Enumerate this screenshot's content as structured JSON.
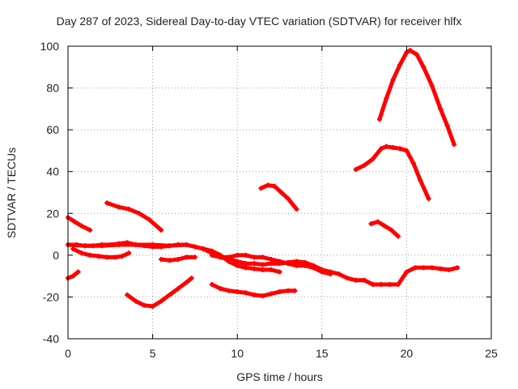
{
  "chart_data": {
    "type": "scatter",
    "title": "Day 287 of 2023, Sidereal Day-to-day VTEC variation (SDTVAR) for receiver hlfx",
    "xlabel": "GPS time / hours",
    "ylabel": "SDTVAR / TECUs",
    "xlim": [
      0,
      25
    ],
    "ylim": [
      -40,
      100
    ],
    "xticks": [
      0,
      5,
      10,
      15,
      20,
      25
    ],
    "yticks": [
      -40,
      -20,
      0,
      20,
      40,
      60,
      80,
      100
    ],
    "grid": true,
    "color": "#ff0000",
    "series": [
      {
        "name": "track-1",
        "x": [
          18.4,
          18.8,
          19.2,
          19.6,
          20.0,
          20.2,
          20.6,
          21.0,
          21.5,
          22.0,
          22.4,
          22.8
        ],
        "y": [
          65,
          75,
          84,
          91,
          97,
          98,
          96,
          90,
          81,
          70,
          62,
          53
        ]
      },
      {
        "name": "track-2",
        "x": [
          17.0,
          17.5,
          18.0,
          18.5,
          18.8,
          19.2,
          19.6,
          20.0,
          20.4,
          20.8,
          21.3
        ],
        "y": [
          41,
          43,
          46,
          51,
          52,
          51.5,
          51,
          50,
          44,
          36,
          27
        ]
      },
      {
        "name": "track-3",
        "x": [
          17.9,
          18.3,
          18.7,
          19.1,
          19.5
        ],
        "y": [
          15,
          16,
          14,
          12,
          9
        ]
      },
      {
        "name": "track-4",
        "x": [
          11.4,
          11.8,
          12.2,
          12.6,
          13.0,
          13.5
        ],
        "y": [
          32,
          33.5,
          33,
          30,
          27,
          22
        ]
      },
      {
        "name": "track-5",
        "x": [
          2.3,
          3.0,
          3.6,
          4.2,
          4.8,
          5.5
        ],
        "y": [
          25,
          23,
          22,
          20,
          17,
          12
        ]
      },
      {
        "name": "track-6",
        "x": [
          0,
          0.4,
          0.8,
          1.3
        ],
        "y": [
          18,
          16,
          14,
          12
        ]
      },
      {
        "name": "track-7",
        "x": [
          0,
          0.3,
          0.6
        ],
        "y": [
          -11,
          -10,
          -8
        ]
      },
      {
        "name": "track-8",
        "x": [
          3.5,
          4.0,
          4.5,
          5.0,
          5.5,
          6.0,
          6.5,
          7.0,
          7.3
        ],
        "y": [
          -19,
          -22,
          -24,
          -24.5,
          -22,
          -19,
          -16,
          -13,
          -11
        ]
      },
      {
        "name": "track-9",
        "x": [
          8.5,
          9.0,
          9.5,
          10.0,
          10.5,
          11.0,
          11.5,
          12.0,
          12.5,
          13.0,
          13.4
        ],
        "y": [
          -14,
          -16,
          -17,
          -17.5,
          -18,
          -19,
          -19.5,
          -18.5,
          -17.5,
          -17,
          -17
        ]
      },
      {
        "name": "track-10",
        "x": [
          0,
          1.0,
          2.0,
          3.0,
          4.0,
          5.0,
          6.0,
          7.0,
          7.5,
          8.0,
          8.5,
          9.0,
          9.5,
          10.0,
          10.5,
          11.0,
          11.5,
          12.0,
          12.5,
          13.0,
          13.5,
          14.0,
          14.5,
          15.0,
          15.5,
          16.0,
          16.5,
          17.0,
          17.5,
          18.0,
          18.5,
          19.0,
          19.5,
          20.0,
          20.5,
          21.0,
          21.5,
          22.0,
          22.5,
          23.0
        ],
        "y": [
          5,
          4.5,
          4.5,
          5,
          5,
          5,
          4.5,
          5,
          4,
          3,
          1,
          -1,
          -2,
          -3,
          -4,
          -4,
          -4.5,
          -4,
          -4,
          -3.5,
          -3,
          -3.5,
          -5,
          -7,
          -8,
          -9,
          -11,
          -12,
          -12,
          -14,
          -14,
          -14,
          -14,
          -8,
          -6,
          -6,
          -6,
          -6.5,
          -7,
          -6
        ]
      },
      {
        "name": "track-11",
        "x": [
          0,
          0.5,
          1.0,
          1.5,
          2.0,
          2.5,
          3.0,
          3.5,
          4.0,
          4.5,
          5.0,
          5.5,
          6.0,
          6.5,
          7.0,
          7.5,
          8.0,
          8.5,
          9.0,
          9.5,
          10.0,
          10.5,
          11.0,
          11.5,
          12.0,
          12.5
        ],
        "y": [
          5,
          5,
          4.5,
          4.5,
          5,
          5,
          5.5,
          6,
          5,
          4.5,
          4,
          4,
          4.5,
          5,
          5,
          4,
          3,
          2,
          0,
          -3,
          -5,
          -6,
          -6.5,
          -7,
          -7,
          -8
        ]
      },
      {
        "name": "track-12",
        "x": [
          0.3,
          0.8,
          1.3,
          1.8,
          2.3,
          2.8,
          3.2,
          3.6
        ],
        "y": [
          3,
          1,
          0,
          -0.5,
          -1,
          -1,
          -0.5,
          1
        ]
      },
      {
        "name": "track-13",
        "x": [
          5.5,
          6.0,
          6.5,
          7.0,
          7.5
        ],
        "y": [
          -2,
          -2.5,
          -2,
          -1,
          -1
        ]
      },
      {
        "name": "track-14",
        "x": [
          8.5,
          9.0,
          9.5,
          10.0,
          10.5,
          11.0,
          11.5,
          12.0,
          12.5,
          13.0,
          13.5,
          14.0,
          14.5,
          15.0,
          15.5
        ],
        "y": [
          0,
          -1,
          -1,
          0,
          0,
          -1,
          -1,
          -2,
          -3,
          -4,
          -5,
          -5,
          -6,
          -8,
          -9
        ]
      }
    ]
  }
}
